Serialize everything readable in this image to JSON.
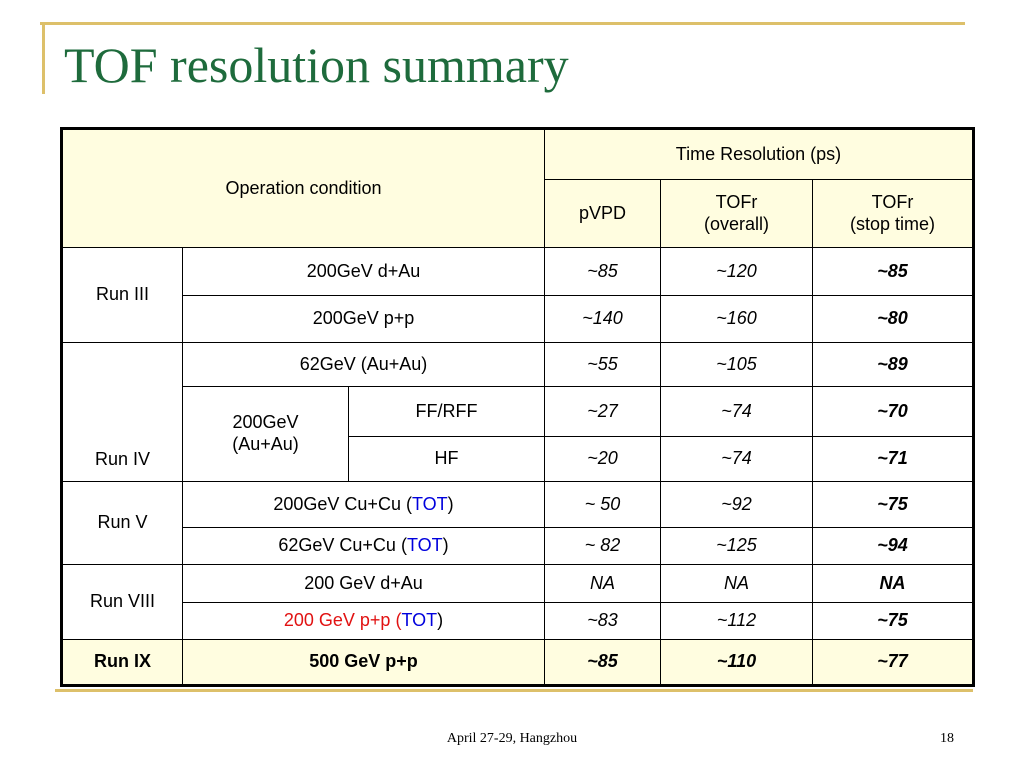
{
  "title": "TOF resolution summary",
  "header": {
    "operation": "Operation condition",
    "time_res": "Time Resolution (ps)",
    "pvpd": "pVPD",
    "tofr_overall_1": "TOFr",
    "tofr_overall_2": "(overall)",
    "tofr_stop_1": "TOFr",
    "tofr_stop_2": "(stop time)"
  },
  "runs": {
    "run3": "Run III",
    "run4": "Run IV",
    "run5": "Run V",
    "run8": "Run VIII",
    "run9": "Run IX"
  },
  "conditions": {
    "r3a": "200GeV d+Au",
    "r3b": "200GeV p+p",
    "r4a": "62GeV (Au+Au)",
    "r4b_1": "200GeV",
    "r4b_2": "(Au+Au)",
    "r4b_ff": "FF/RFF",
    "r4b_hf": "HF",
    "r5a": "200GeV Cu+Cu (",
    "r5b": "62GeV Cu+Cu (",
    "tot": "TOT",
    "close": ")",
    "r8a": "200 GeV d+Au",
    "r8b": "200 GeV p+p (",
    "r9": "500 GeV p+p"
  },
  "values": {
    "r3a": [
      "~85",
      "~120",
      "~85"
    ],
    "r3b": [
      "~140",
      "~160",
      "~80"
    ],
    "r4a": [
      "~55",
      "~105",
      "~89"
    ],
    "r4ff": [
      "~27",
      "~74",
      "~70"
    ],
    "r4hf": [
      "~20",
      "~74",
      "~71"
    ],
    "r5a": [
      "~ 50",
      "~92",
      "~75"
    ],
    "r5b": [
      "~ 82",
      "~125",
      "~94"
    ],
    "r8a": [
      "NA",
      "NA",
      "NA"
    ],
    "r8b": [
      "~83",
      "~112",
      "~75"
    ],
    "r9": [
      "~85",
      "~110",
      "~77"
    ]
  },
  "footer": "April 27-29, Hangzhou",
  "page_number": "18"
}
